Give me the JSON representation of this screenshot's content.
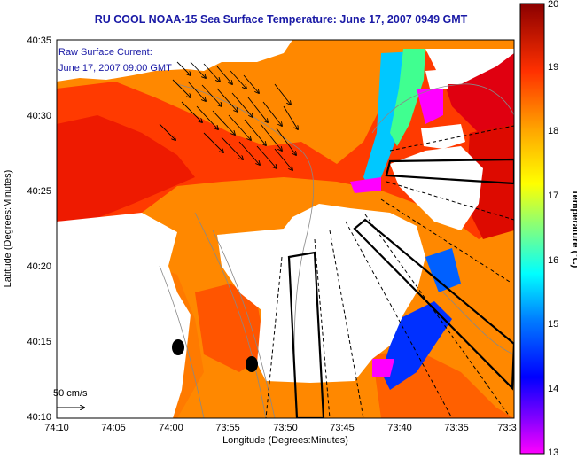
{
  "title": "RU COOL   NOAA-15  Sea Surface Temperature:  June 17, 2007 0949 GMT",
  "legend": {
    "line1": "Raw Surface Current:",
    "line2": "June 17, 2007 09:00 GMT"
  },
  "scale_label": "50 cm/s",
  "x_axis": {
    "label": "Longitude (Degrees:Minutes)",
    "ticks": [
      "74:10",
      "74:05",
      "74:00",
      "73:55",
      "73:50",
      "73:45",
      "73:40",
      "73:35",
      "73:3"
    ]
  },
  "y_axis": {
    "label": "Latitude (Degrees:Minutes)",
    "ticks": [
      "40:35",
      "40:30",
      "40:25",
      "40:20",
      "40:15",
      "40:10"
    ]
  },
  "colorbar": {
    "label": "Temperature (°C)",
    "ticks": [
      "20",
      "19",
      "18",
      "17",
      "16",
      "15",
      "14",
      "13"
    ],
    "range": [
      13,
      20
    ]
  },
  "colors": {
    "land": "#ffffff",
    "warm": "#ff2a00",
    "cold": "#0000ff",
    "title": "#1a1aa6"
  }
}
